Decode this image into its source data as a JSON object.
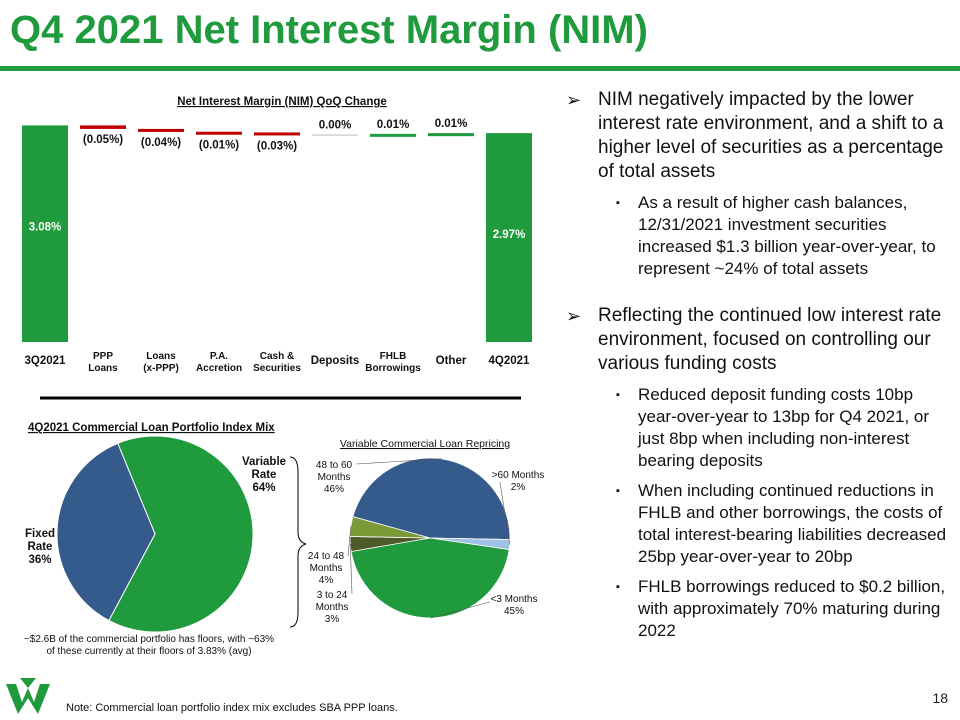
{
  "title": "Q4 2021 Net Interest Margin (NIM)",
  "page_number": "18",
  "note": "Note: Commercial loan portfolio index mix excludes SBA PPP loans.",
  "colors": {
    "green": "#1f9a3c",
    "red": "#c00000",
    "blue": "#355b8c",
    "olive": "#7a9a38",
    "dark_olive": "#4e5a2a",
    "light_blue": "#9dc3e6"
  },
  "chart_data": [
    {
      "type": "bar",
      "subtype": "waterfall",
      "title": "Net Interest Margin (NIM) QoQ Change",
      "categories": [
        "3Q2021",
        "PPP\nLoans",
        "Loans\n(x-PPP)",
        "P.A.\nAccretion",
        "Cash &\nSecurities",
        "Deposits",
        "FHLB\nBorrowings",
        "Other",
        "4Q2021"
      ],
      "values": [
        3.08,
        -0.05,
        -0.04,
        -0.01,
        -0.03,
        0.0,
        0.01,
        0.01,
        2.97
      ],
      "labels": [
        "3.08%",
        "(0.05%)",
        "(0.04%)",
        "(0.01%)",
        "(0.03%)",
        "0.00%",
        "0.01%",
        "0.01%",
        "2.97%"
      ],
      "kinds": [
        "total",
        "delta",
        "delta",
        "delta",
        "delta",
        "delta",
        "delta",
        "delta",
        "total"
      ],
      "ylim": [
        0,
        3.25
      ]
    },
    {
      "type": "pie",
      "title": "4Q2021 Commercial Loan Portfolio Index Mix",
      "slices": [
        {
          "name": "Variable Rate",
          "value": 64,
          "label_lines": [
            "Variable",
            "Rate",
            "64%"
          ]
        },
        {
          "name": "Fixed Rate",
          "value": 36,
          "label_lines": [
            "Fixed",
            "Rate",
            "36%"
          ]
        }
      ],
      "footnote_lines": [
        "~$2.6B of the commercial portfolio has floors, with ~63%",
        "of these currently at their floors of 3.83% (avg)"
      ]
    },
    {
      "type": "pie",
      "title": "Variable Commercial Loan Repricing",
      "slices": [
        {
          "name": "48 to 60 Months",
          "value": 46,
          "label_lines": [
            "48 to 60",
            "Months",
            "46%"
          ]
        },
        {
          "name": ">60 Months",
          "value": 2,
          "label_lines": [
            ">60 Months",
            "2%"
          ]
        },
        {
          "name": "<3 Months",
          "value": 45,
          "label_lines": [
            "<3 Months",
            "45%"
          ]
        },
        {
          "name": "3 to 24 Months",
          "value": 3,
          "label_lines": [
            "3 to 24",
            "Months",
            "3%"
          ]
        },
        {
          "name": "24 to 48 Months",
          "value": 4,
          "label_lines": [
            "24 to 48",
            "Months",
            "4%"
          ]
        }
      ]
    }
  ],
  "bullets": [
    {
      "text": "NIM negatively impacted by the lower interest rate environment, and a shift to a higher level of securities as a percentage of total assets",
      "subs": [
        "As a result of higher cash balances, 12/31/2021 investment securities increased $1.3 billion year-over-year, to represent ~24% of total assets"
      ]
    },
    {
      "text": "Reflecting the continued low interest rate environment, focused on controlling our various funding costs",
      "subs": [
        "Reduced deposit funding costs 10bp year-over-year to 13bp for Q4 2021, or just 8bp when including non-interest bearing deposits",
        "When including continued reductions in FHLB and other borrowings, the costs of total interest-bearing liabilities decreased 25bp year-over-year to 20bp",
        "FHLB borrowings reduced to $0.2 billion, with approximately 70% maturing during 2022"
      ]
    }
  ],
  "bullet_markers": {
    "level1": "➢",
    "level2": "▪"
  }
}
